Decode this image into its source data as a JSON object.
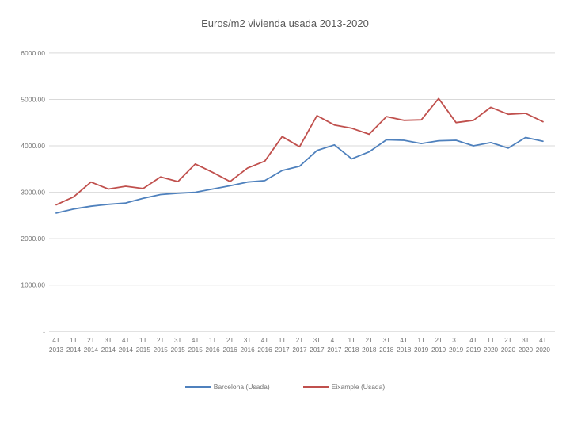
{
  "title": "Euros/m2 vivienda usada 2013-2020",
  "chart_data": {
    "type": "line",
    "title": "Euros/m2 vivienda usada 2013-2020",
    "xlabel": "",
    "ylabel": "",
    "ylim": [
      0,
      6000
    ],
    "grid": true,
    "legend_position": "bottom",
    "yticks": [
      {
        "value": 0,
        "label": "-"
      },
      {
        "value": 1000,
        "label": "1000.00"
      },
      {
        "value": 2000,
        "label": "2000.00"
      },
      {
        "value": 3000,
        "label": "3000.00"
      },
      {
        "value": 4000,
        "label": "4000.00"
      },
      {
        "value": 5000,
        "label": "5000.00"
      },
      {
        "value": 6000,
        "label": "6000.00"
      }
    ],
    "categories": [
      "4T 2013",
      "1T 2014",
      "2T 2014",
      "3T 2014",
      "4T 2014",
      "1T 2015",
      "2T 2015",
      "3T 2015",
      "4T 2015",
      "1T 2016",
      "2T 2016",
      "3T 2016",
      "4T 2016",
      "1T 2017",
      "2T 2017",
      "3T 2017",
      "4T 2017",
      "1T 2018",
      "2T 2018",
      "3T 2018",
      "4T 2018",
      "1T 2019",
      "2T 2019",
      "3T 2019",
      "4T 2019",
      "1T 2020",
      "2T 2020",
      "3T 2020",
      "4T 2020"
    ],
    "series": [
      {
        "name": "Barcelona (Usada)",
        "color": "#4F81BD",
        "values": [
          2550,
          2640,
          2700,
          2740,
          2770,
          2870,
          2950,
          2980,
          3000,
          3070,
          3140,
          3220,
          3250,
          3470,
          3560,
          3900,
          4020,
          3720,
          3870,
          4130,
          4120,
          4050,
          4110,
          4120,
          4000,
          4070,
          3950,
          4180,
          4100
        ]
      },
      {
        "name": "Eixample (Usada)",
        "color": "#C0504D",
        "values": [
          2730,
          2900,
          3220,
          3070,
          3130,
          3080,
          3330,
          3230,
          3610,
          3430,
          3230,
          3520,
          3670,
          4200,
          3980,
          4650,
          4450,
          4380,
          4250,
          4630,
          4550,
          4560,
          5020,
          4500,
          4550,
          4830,
          4680,
          4700,
          4520
        ]
      }
    ],
    "colors": {
      "gridline": "#d9d9d9",
      "tick_text": "#737373",
      "title_text": "#595959"
    }
  }
}
